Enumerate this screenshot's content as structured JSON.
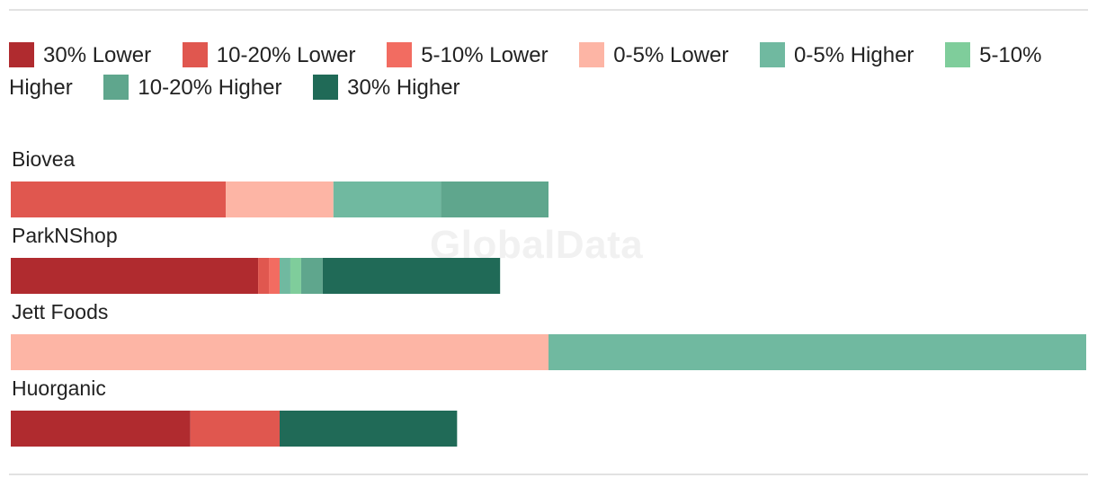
{
  "watermark": "GlobalData",
  "chart_data": {
    "type": "bar",
    "orientation": "horizontal",
    "stacked": true,
    "legend_position": "top",
    "xlim": [
      0,
      100
    ],
    "categories": [
      "Biovea",
      "ParkNShop",
      "Jett Foods",
      "Huorganic"
    ],
    "series": [
      {
        "name": "30% Lower",
        "color": "#b02b2f",
        "values": [
          0,
          23,
          0,
          16.7
        ]
      },
      {
        "name": "10-20% Lower",
        "color": "#e0574f",
        "values": [
          20,
          1,
          0,
          8.3
        ]
      },
      {
        "name": "5-10% Lower",
        "color": "#f26c61",
        "values": [
          0,
          1,
          0,
          0
        ]
      },
      {
        "name": "0-5% Lower",
        "color": "#fdb5a5",
        "values": [
          10,
          0,
          50,
          0
        ]
      },
      {
        "name": "0-5% Higher",
        "color": "#70b9a0",
        "values": [
          10,
          1,
          50,
          0
        ]
      },
      {
        "name": "5-10% Higher",
        "color": "#7fcd9b",
        "values": [
          0,
          1,
          0,
          0
        ]
      },
      {
        "name": "10-20% Higher",
        "color": "#5fa68d",
        "values": [
          10,
          2,
          0,
          0
        ]
      },
      {
        "name": "30% Higher",
        "color": "#206a57",
        "values": [
          0,
          16.5,
          0,
          16.5
        ]
      }
    ]
  }
}
